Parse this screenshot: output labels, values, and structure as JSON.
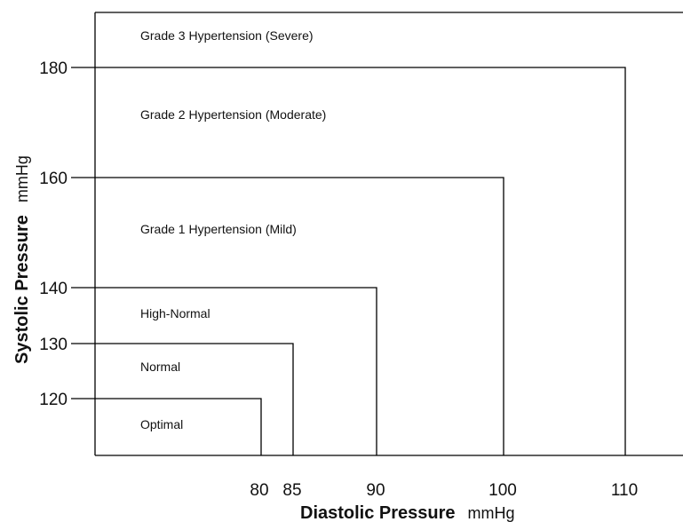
{
  "chart_data": {
    "type": "diagram",
    "x_axis": {
      "label": "Diastolic Pressure",
      "unit": "mmHg",
      "ticks": [
        80,
        85,
        90,
        100,
        110
      ]
    },
    "y_axis": {
      "label": "Systolic Pressure",
      "unit": "mmHg",
      "ticks": [
        120,
        130,
        140,
        160,
        180
      ]
    },
    "zones": [
      {
        "name": "Optimal",
        "systolic_max": 120,
        "diastolic_max": 80
      },
      {
        "name": "Normal",
        "systolic_max": 130,
        "diastolic_max": 85
      },
      {
        "name": "High-Normal",
        "systolic_max": 140,
        "diastolic_max": 90
      },
      {
        "name": "Grade 1 Hypertension (Mild)",
        "systolic_max": 160,
        "diastolic_max": 100
      },
      {
        "name": "Grade 2 Hypertension (Moderate)",
        "systolic_max": 180,
        "diastolic_max": 110
      },
      {
        "name": "Grade 3 Hypertension (Severe)",
        "systolic_max": null,
        "diastolic_max": null
      }
    ]
  }
}
